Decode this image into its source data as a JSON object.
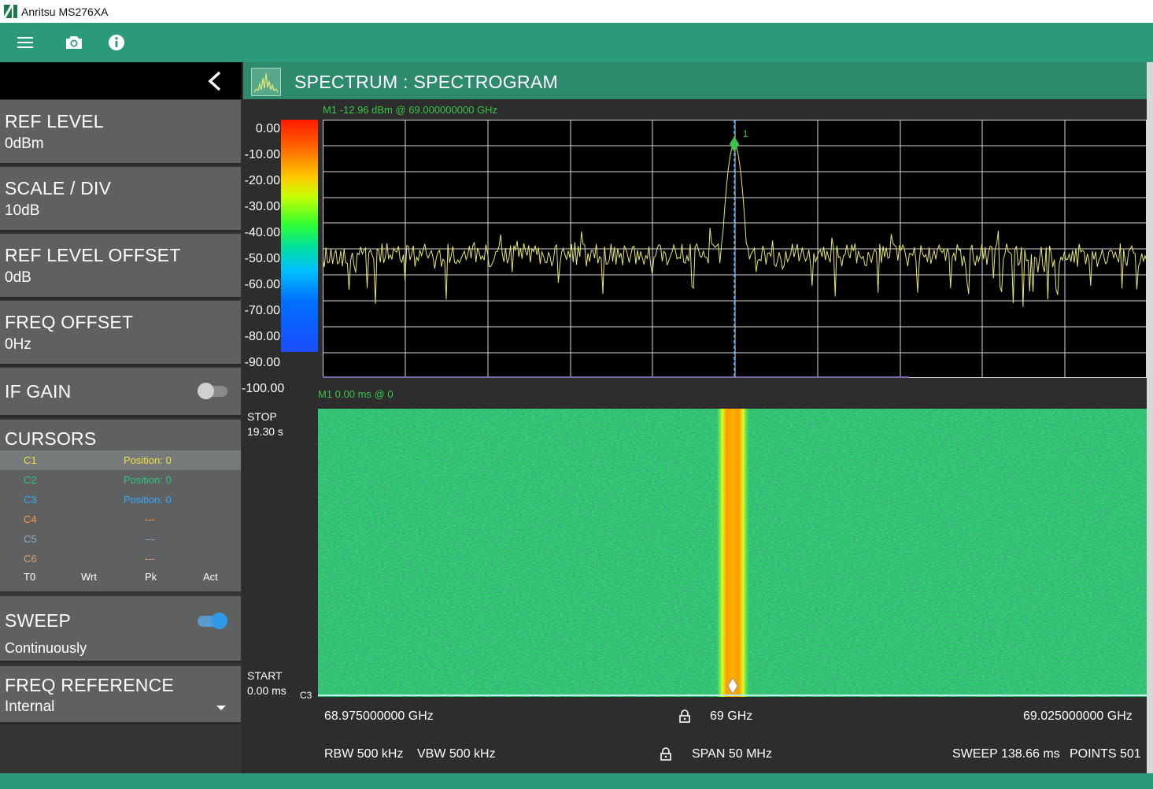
{
  "window": {
    "title": "Anritsu MS276XA"
  },
  "toolbar": {
    "menu_icon": "hamburger-menu-icon",
    "camera_icon": "camera-icon",
    "info_icon": "info-icon"
  },
  "colors": {
    "accent": "#2b9a7a",
    "card_bg": "#5f6161",
    "trace": "#e8e86a",
    "marker": "#39c64a"
  },
  "left_panel": {
    "ref_level": {
      "title": "REF LEVEL",
      "value": "0dBm"
    },
    "scale_div": {
      "title": "SCALE / DIV",
      "value": "10dB"
    },
    "ref_level_offset": {
      "title": "REF LEVEL OFFSET",
      "value": "0dB"
    },
    "freq_offset": {
      "title": "FREQ OFFSET",
      "value": "0Hz"
    },
    "if_gain": {
      "title": "IF GAIN",
      "enabled": false
    },
    "cursors": {
      "title": "CURSORS",
      "rows": [
        {
          "name": "C1",
          "position": "Position: 0",
          "color": "#f0e040"
        },
        {
          "name": "C2",
          "position": "Position: 0",
          "color": "#2ec27e"
        },
        {
          "name": "C3",
          "position": "Position: 0",
          "color": "#33a8ff"
        },
        {
          "name": "C4",
          "position": "---",
          "color": "#ff9a3a"
        },
        {
          "name": "C5",
          "position": "---",
          "color": "#8fa8c8"
        },
        {
          "name": "C6",
          "position": "---",
          "color": "#d8a070"
        }
      ],
      "footer": [
        "T0",
        "Wrt",
        "Pk",
        "Act"
      ]
    },
    "sweep": {
      "title": "SWEEP",
      "value": "Continuously",
      "enabled": true
    },
    "freq_reference": {
      "title": "FREQ REFERENCE",
      "value": "Internal"
    }
  },
  "main": {
    "title": "SPECTRUM : SPECTROGRAM",
    "marker_readout_spectrum": "M1   -12.96  dBm  @  69.000000000 GHz",
    "marker_readout_spectrogram": "M1  0.00 ms  @  0",
    "marker_label": "1",
    "y_ticks": [
      "0.00",
      "-10.00",
      "-20.00",
      "-30.00",
      "-40.00",
      "-50.00",
      "-60.00",
      "-70.00",
      "-80.00",
      "-90.00",
      "-100.00"
    ],
    "stop_label": "STOP",
    "stop_value": "19.30 s",
    "start_label": "START",
    "start_value": "0.00 ms",
    "cursor_tag": "C3",
    "freq_start": "68.975000000 GHz",
    "freq_center": "69 GHz",
    "freq_stop": "69.025000000 GHz",
    "rbw": "RBW 500 kHz",
    "vbw": "VBW 500 kHz",
    "span": "SPAN 50 MHz",
    "sweep_time": "SWEEP 138.66 ms",
    "points": "POINTS 501"
  }
}
